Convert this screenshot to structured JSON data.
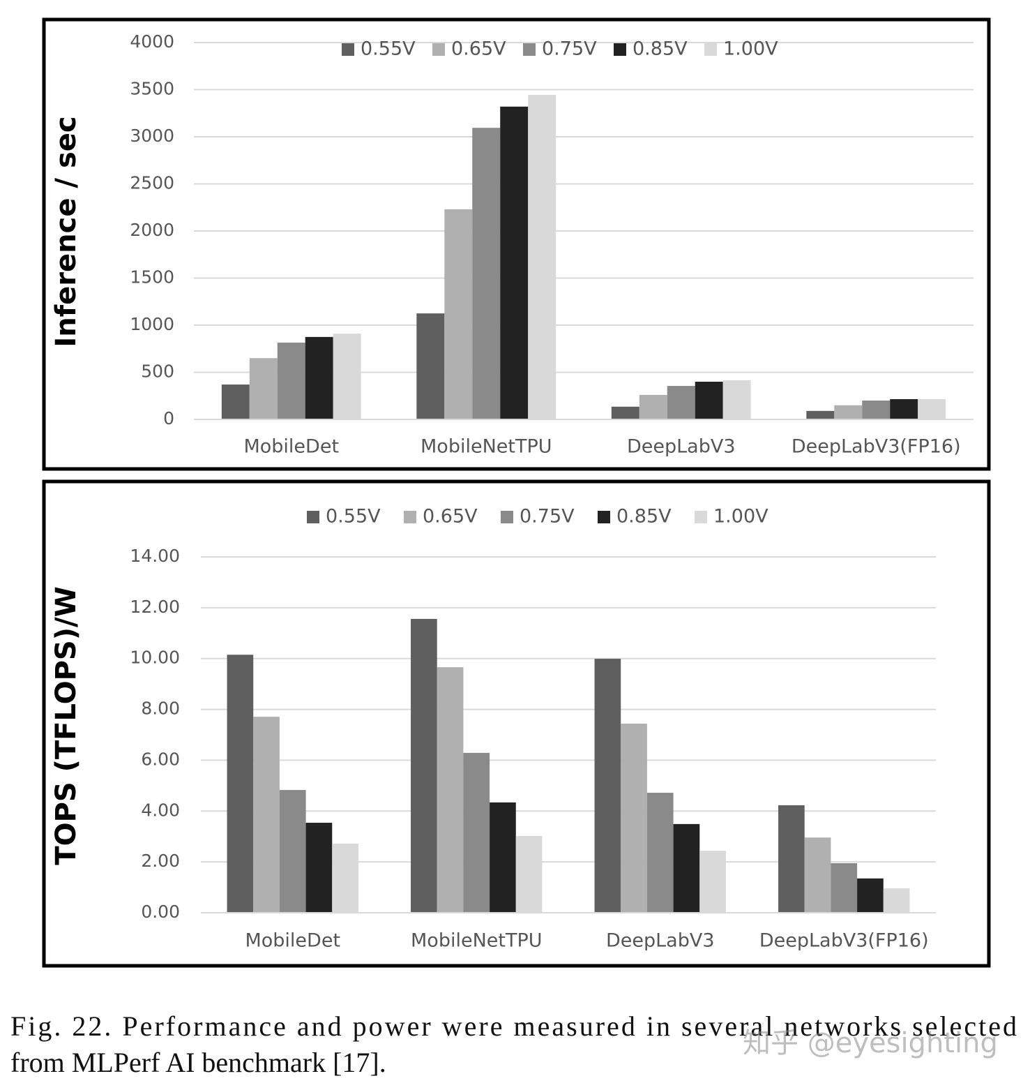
{
  "chart_data": [
    {
      "type": "bar",
      "y_label": "Inference / sec",
      "categories": [
        "MobileDet",
        "MobileNetTPU",
        "DeepLabV3",
        "DeepLabV3(FP16)"
      ],
      "series": [
        {
          "name": "0.55V",
          "color": "#5f5f5f",
          "values": [
            370,
            1125,
            135,
            90
          ]
        },
        {
          "name": "0.65V",
          "color": "#b0b0b0",
          "values": [
            650,
            2230,
            260,
            150
          ]
        },
        {
          "name": "0.75V",
          "color": "#8a8a8a",
          "values": [
            815,
            3095,
            355,
            200
          ]
        },
        {
          "name": "0.85V",
          "color": "#222222",
          "values": [
            875,
            3320,
            400,
            215
          ]
        },
        {
          "name": "1.00V",
          "color": "#d9d9d9",
          "values": [
            910,
            3445,
            415,
            215
          ]
        }
      ],
      "ylim": [
        0,
        4000
      ],
      "yticks": [
        0,
        500,
        1000,
        1500,
        2000,
        2500,
        3000,
        3500,
        4000
      ],
      "grid": true,
      "legend": "top"
    },
    {
      "type": "bar",
      "y_label": "TOPS (TFLOPS)/W",
      "categories": [
        "MobileDet",
        "MobileNetTPU",
        "DeepLabV3",
        "DeepLabV3(FP16)"
      ],
      "series": [
        {
          "name": "0.55V",
          "color": "#5f5f5f",
          "values": [
            10.15,
            11.56,
            9.99,
            4.23
          ]
        },
        {
          "name": "0.65V",
          "color": "#b0b0b0",
          "values": [
            7.71,
            9.66,
            7.44,
            2.96
          ]
        },
        {
          "name": "0.75V",
          "color": "#8a8a8a",
          "values": [
            4.83,
            6.29,
            4.72,
            1.95
          ]
        },
        {
          "name": "0.85V",
          "color": "#222222",
          "values": [
            3.54,
            4.34,
            3.49,
            1.35
          ]
        },
        {
          "name": "1.00V",
          "color": "#d9d9d9",
          "values": [
            2.72,
            3.02,
            2.44,
            0.96
          ]
        }
      ],
      "ylim": [
        0,
        14
      ],
      "yticks": [
        {
          "value": 0,
          "label": "0.00"
        },
        {
          "value": 2,
          "label": "2.00"
        },
        {
          "value": 4,
          "label": "4.00"
        },
        {
          "value": 6,
          "label": "6.00"
        },
        {
          "value": 8,
          "label": "8.00"
        },
        {
          "value": 10,
          "label": "10.00"
        },
        {
          "value": 12,
          "label": "12.00"
        },
        {
          "value": 14,
          "label": "14.00"
        }
      ],
      "grid": true,
      "legend": "top"
    }
  ],
  "caption": {
    "line1": "Fig. 22.   Performance and power were measured in several networks selected",
    "line2": "from MLPerf AI benchmark [17]."
  },
  "watermark": "知乎 @eyesighting"
}
